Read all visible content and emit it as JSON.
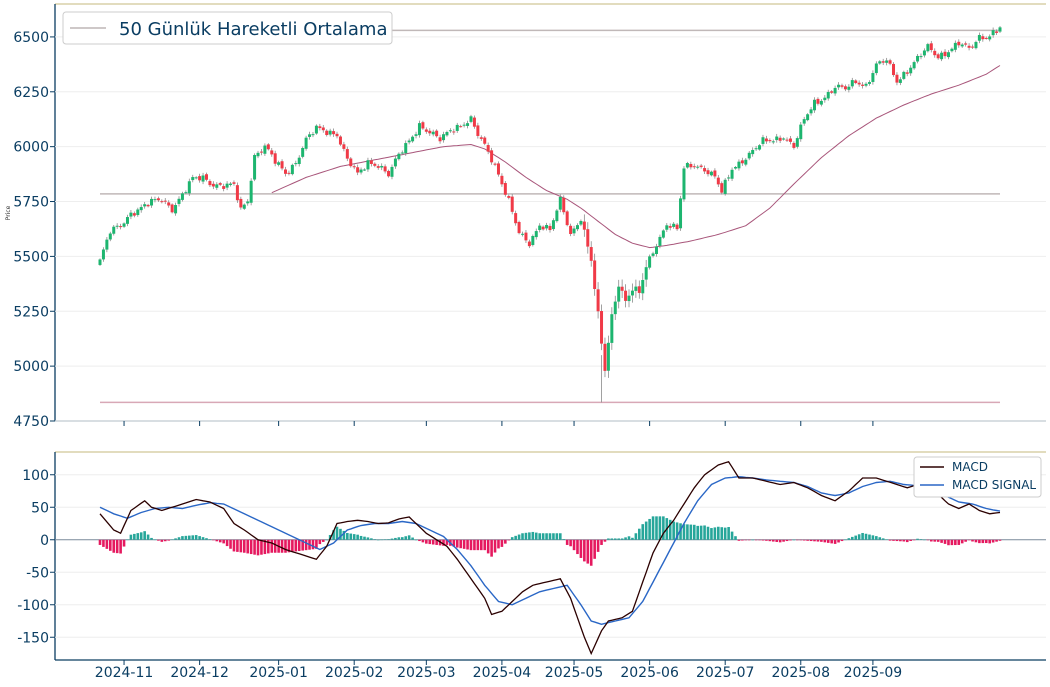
{
  "colors": {
    "up": "#1db56f",
    "down": "#f03a47",
    "wick": "#8a8a8a",
    "sma": "#a8557a",
    "axis": "#0a3d62",
    "tick_text": "#0a3d62",
    "hline": "#c0b8b8",
    "hline_low": "#d8a8b6",
    "macd": "#2b0000",
    "signal": "#2a67c6",
    "hist_pos": "#26a69a",
    "hist_neg": "#e5195f",
    "grid": "#eeeeee"
  },
  "chart_data": [
    {
      "type": "candlestick",
      "ylabel": "Price",
      "ylim": [
        4750,
        6650
      ],
      "yticks": [
        4750,
        5000,
        5250,
        5500,
        5750,
        6000,
        6250,
        6500
      ],
      "legend": {
        "label": "50 Günlük Hareketli Ortalama",
        "placement": "top-left"
      },
      "horizontal_lines": [
        6530,
        5785,
        4835
      ],
      "price_anchors": [
        [
          0,
          5480
        ],
        [
          3,
          5610
        ],
        [
          6,
          5640
        ],
        [
          9,
          5700
        ],
        [
          12,
          5720
        ],
        [
          15,
          5745
        ],
        [
          18,
          5760
        ],
        [
          21,
          5720
        ],
        [
          24,
          5780
        ],
        [
          27,
          5850
        ],
        [
          30,
          5860
        ],
        [
          33,
          5830
        ],
        [
          36,
          5820
        ],
        [
          39,
          5820
        ],
        [
          41,
          5710
        ],
        [
          43,
          5760
        ],
        [
          45,
          5960
        ],
        [
          48,
          6000
        ],
        [
          51,
          5930
        ],
        [
          54,
          5880
        ],
        [
          57,
          5930
        ],
        [
          60,
          6030
        ],
        [
          63,
          6080
        ],
        [
          66,
          6070
        ],
        [
          69,
          6060
        ],
        [
          72,
          5940
        ],
        [
          75,
          5870
        ],
        [
          78,
          5930
        ],
        [
          81,
          5920
        ],
        [
          84,
          5870
        ],
        [
          87,
          5960
        ],
        [
          90,
          6030
        ],
        [
          93,
          6100
        ],
        [
          96,
          6060
        ],
        [
          99,
          6030
        ],
        [
          102,
          6080
        ],
        [
          105,
          6100
        ],
        [
          108,
          6120
        ],
        [
          110,
          6050
        ],
        [
          113,
          5980
        ],
        [
          116,
          5880
        ],
        [
          119,
          5750
        ],
        [
          122,
          5600
        ],
        [
          125,
          5560
        ],
        [
          128,
          5650
        ],
        [
          131,
          5620
        ],
        [
          134,
          5750
        ],
        [
          137,
          5600
        ],
        [
          140,
          5680
        ],
        [
          143,
          5480
        ],
        [
          146,
          5100
        ],
        [
          147,
          4980
        ],
        [
          149,
          5230
        ],
        [
          151,
          5380
        ],
        [
          153,
          5300
        ],
        [
          155,
          5350
        ],
        [
          157,
          5330
        ],
        [
          159,
          5450
        ],
        [
          162,
          5560
        ],
        [
          165,
          5650
        ],
        [
          168,
          5620
        ],
        [
          170,
          5900
        ],
        [
          173,
          5920
        ],
        [
          176,
          5900
        ],
        [
          179,
          5860
        ],
        [
          181,
          5790
        ],
        [
          184,
          5900
        ],
        [
          187,
          5940
        ],
        [
          190,
          5980
        ],
        [
          193,
          6020
        ],
        [
          196,
          6030
        ],
        [
          199,
          6050
        ],
        [
          202,
          6000
        ],
        [
          205,
          6120
        ],
        [
          208,
          6200
        ],
        [
          211,
          6230
        ],
        [
          214,
          6270
        ],
        [
          217,
          6260
        ],
        [
          220,
          6300
        ],
        [
          223,
          6280
        ],
        [
          226,
          6370
        ],
        [
          229,
          6390
        ],
        [
          232,
          6300
        ],
        [
          235,
          6350
        ],
        [
          238,
          6400
        ],
        [
          241,
          6450
        ],
        [
          244,
          6410
        ],
        [
          247,
          6440
        ],
        [
          250,
          6470
        ],
        [
          253,
          6440
        ],
        [
          256,
          6500
        ],
        [
          259,
          6510
        ],
        [
          262,
          6540
        ]
      ],
      "sma50_anchors": [
        [
          50,
          5790
        ],
        [
          60,
          5860
        ],
        [
          70,
          5910
        ],
        [
          80,
          5940
        ],
        [
          90,
          5970
        ],
        [
          100,
          6000
        ],
        [
          108,
          6010
        ],
        [
          112,
          5990
        ],
        [
          118,
          5930
        ],
        [
          124,
          5860
        ],
        [
          130,
          5800
        ],
        [
          136,
          5760
        ],
        [
          140,
          5720
        ],
        [
          145,
          5660
        ],
        [
          150,
          5600
        ],
        [
          155,
          5560
        ],
        [
          160,
          5540
        ],
        [
          165,
          5550
        ],
        [
          172,
          5570
        ],
        [
          180,
          5600
        ],
        [
          188,
          5640
        ],
        [
          195,
          5720
        ],
        [
          202,
          5830
        ],
        [
          210,
          5950
        ],
        [
          218,
          6050
        ],
        [
          226,
          6130
        ],
        [
          234,
          6190
        ],
        [
          242,
          6240
        ],
        [
          250,
          6280
        ],
        [
          258,
          6330
        ],
        [
          262,
          6370
        ]
      ]
    },
    {
      "type": "line+bar",
      "ylim": [
        -185,
        135
      ],
      "yticks": [
        -150,
        -100,
        -50,
        0,
        50,
        100
      ],
      "legend": {
        "entries": [
          "MACD",
          "MACD SIGNAL"
        ],
        "placement": "top-right"
      },
      "macd_anchors": [
        [
          0,
          40
        ],
        [
          4,
          15
        ],
        [
          6,
          10
        ],
        [
          9,
          45
        ],
        [
          13,
          60
        ],
        [
          15,
          50
        ],
        [
          18,
          45
        ],
        [
          21,
          50
        ],
        [
          24,
          55
        ],
        [
          28,
          62
        ],
        [
          32,
          58
        ],
        [
          36,
          48
        ],
        [
          39,
          25
        ],
        [
          42,
          15
        ],
        [
          46,
          0
        ],
        [
          50,
          -5
        ],
        [
          54,
          -15
        ],
        [
          57,
          -20
        ],
        [
          60,
          -25
        ],
        [
          63,
          -30
        ],
        [
          66,
          -10
        ],
        [
          69,
          25
        ],
        [
          72,
          28
        ],
        [
          75,
          30
        ],
        [
          78,
          28
        ],
        [
          81,
          25
        ],
        [
          84,
          26
        ],
        [
          87,
          32
        ],
        [
          90,
          35
        ],
        [
          92,
          25
        ],
        [
          95,
          10
        ],
        [
          98,
          0
        ],
        [
          101,
          -10
        ],
        [
          104,
          -30
        ],
        [
          108,
          -60
        ],
        [
          112,
          -90
        ],
        [
          114,
          -115
        ],
        [
          117,
          -110
        ],
        [
          120,
          -95
        ],
        [
          123,
          -80
        ],
        [
          126,
          -70
        ],
        [
          130,
          -65
        ],
        [
          134,
          -60
        ],
        [
          137,
          -90
        ],
        [
          139,
          -120
        ],
        [
          141,
          -150
        ],
        [
          143,
          -175
        ],
        [
          146,
          -140
        ],
        [
          148,
          -125
        ],
        [
          152,
          -120
        ],
        [
          155,
          -110
        ],
        [
          158,
          -65
        ],
        [
          161,
          -20
        ],
        [
          164,
          10
        ],
        [
          167,
          30
        ],
        [
          170,
          55
        ],
        [
          173,
          80
        ],
        [
          176,
          100
        ],
        [
          180,
          115
        ],
        [
          183,
          120
        ],
        [
          186,
          95
        ],
        [
          190,
          95
        ],
        [
          194,
          90
        ],
        [
          198,
          85
        ],
        [
          202,
          88
        ],
        [
          206,
          80
        ],
        [
          210,
          68
        ],
        [
          214,
          60
        ],
        [
          218,
          75
        ],
        [
          222,
          95
        ],
        [
          226,
          95
        ],
        [
          229,
          90
        ],
        [
          232,
          85
        ],
        [
          235,
          80
        ],
        [
          238,
          85
        ],
        [
          241,
          80
        ],
        [
          244,
          70
        ],
        [
          247,
          55
        ],
        [
          250,
          48
        ],
        [
          253,
          55
        ],
        [
          256,
          45
        ],
        [
          259,
          40
        ],
        [
          262,
          42
        ]
      ],
      "signal_anchors": [
        [
          0,
          50
        ],
        [
          4,
          40
        ],
        [
          8,
          33
        ],
        [
          12,
          42
        ],
        [
          16,
          48
        ],
        [
          20,
          50
        ],
        [
          24,
          48
        ],
        [
          28,
          53
        ],
        [
          32,
          57
        ],
        [
          36,
          55
        ],
        [
          40,
          45
        ],
        [
          44,
          35
        ],
        [
          48,
          25
        ],
        [
          52,
          15
        ],
        [
          56,
          5
        ],
        [
          60,
          -5
        ],
        [
          64,
          -15
        ],
        [
          68,
          -5
        ],
        [
          72,
          15
        ],
        [
          76,
          22
        ],
        [
          80,
          25
        ],
        [
          84,
          25
        ],
        [
          88,
          28
        ],
        [
          92,
          25
        ],
        [
          96,
          15
        ],
        [
          100,
          5
        ],
        [
          104,
          -15
        ],
        [
          108,
          -40
        ],
        [
          112,
          -70
        ],
        [
          116,
          -95
        ],
        [
          120,
          -100
        ],
        [
          124,
          -90
        ],
        [
          128,
          -80
        ],
        [
          132,
          -75
        ],
        [
          136,
          -70
        ],
        [
          140,
          -100
        ],
        [
          143,
          -125
        ],
        [
          146,
          -130
        ],
        [
          150,
          -125
        ],
        [
          154,
          -120
        ],
        [
          158,
          -95
        ],
        [
          162,
          -55
        ],
        [
          166,
          -15
        ],
        [
          170,
          25
        ],
        [
          174,
          60
        ],
        [
          178,
          85
        ],
        [
          182,
          95
        ],
        [
          186,
          97
        ],
        [
          190,
          95
        ],
        [
          194,
          92
        ],
        [
          198,
          90
        ],
        [
          202,
          88
        ],
        [
          206,
          82
        ],
        [
          210,
          72
        ],
        [
          214,
          68
        ],
        [
          218,
          72
        ],
        [
          222,
          82
        ],
        [
          226,
          88
        ],
        [
          230,
          90
        ],
        [
          234,
          85
        ],
        [
          238,
          83
        ],
        [
          242,
          80
        ],
        [
          246,
          68
        ],
        [
          250,
          58
        ],
        [
          254,
          55
        ],
        [
          258,
          48
        ],
        [
          262,
          44
        ]
      ],
      "zero_line": 0
    }
  ],
  "x_axis": {
    "labels": [
      "2024-11",
      "2024-12",
      "2025-01",
      "2025-02",
      "2025-03",
      "2025-04",
      "2025-05",
      "2025-06",
      "2025-07",
      "2025-08",
      "2025-09"
    ],
    "label_index": [
      7,
      29,
      52,
      74,
      95,
      117,
      138,
      160,
      182,
      204,
      225
    ]
  },
  "labels": {
    "legend_main": "50 Günlük Hareketli Ortalama",
    "price_axis": "Price",
    "macd": "MACD",
    "macd_signal": "MACD SIGNAL"
  }
}
